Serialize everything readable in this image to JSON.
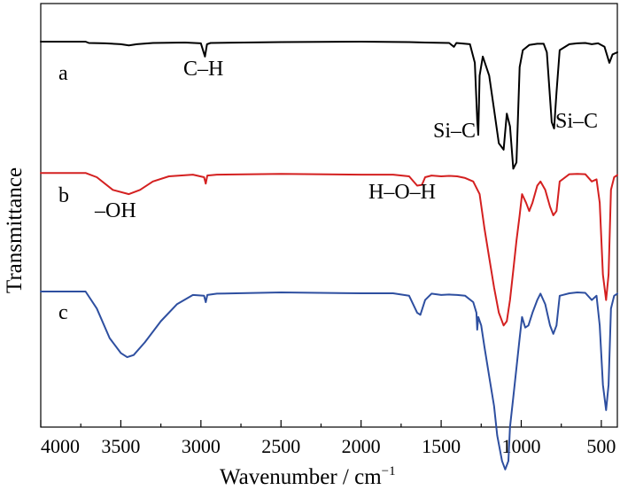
{
  "chart_data": {
    "type": "line",
    "title": "",
    "xlabel": "Wavenumber / cm",
    "xlabel_sup": "−1",
    "ylabel": "Transmittance",
    "xlim": [
      4000,
      400
    ],
    "x_reversed": true,
    "y_ticks_shown": false,
    "grid": false,
    "x_ticks": [
      4000,
      3500,
      3000,
      2500,
      2000,
      1500,
      1000,
      500
    ],
    "series": [
      {
        "name": "a",
        "color": "#000000",
        "offset": 0.91,
        "points": [
          [
            4000,
            0.0
          ],
          [
            3720,
            0.0
          ],
          [
            3700,
            -0.003
          ],
          [
            3600,
            -0.004
          ],
          [
            3500,
            -0.006
          ],
          [
            3450,
            -0.009
          ],
          [
            3400,
            -0.006
          ],
          [
            3300,
            -0.003
          ],
          [
            3100,
            -0.002
          ],
          [
            3000,
            -0.004
          ],
          [
            2975,
            -0.035
          ],
          [
            2962,
            -0.006
          ],
          [
            2940,
            -0.003
          ],
          [
            2500,
            -0.001
          ],
          [
            2000,
            0.0
          ],
          [
            1700,
            -0.001
          ],
          [
            1600,
            -0.002
          ],
          [
            1450,
            -0.003
          ],
          [
            1420,
            -0.012
          ],
          [
            1405,
            -0.003
          ],
          [
            1320,
            -0.006
          ],
          [
            1290,
            -0.05
          ],
          [
            1275,
            -0.185
          ],
          [
            1268,
            -0.22
          ],
          [
            1260,
            -0.08
          ],
          [
            1240,
            -0.035
          ],
          [
            1200,
            -0.08
          ],
          [
            1170,
            -0.16
          ],
          [
            1140,
            -0.24
          ],
          [
            1110,
            -0.255
          ],
          [
            1090,
            -0.17
          ],
          [
            1070,
            -0.2
          ],
          [
            1050,
            -0.3
          ],
          [
            1030,
            -0.285
          ],
          [
            1010,
            -0.06
          ],
          [
            990,
            -0.02
          ],
          [
            950,
            -0.008
          ],
          [
            900,
            -0.005
          ],
          [
            860,
            -0.005
          ],
          [
            840,
            -0.025
          ],
          [
            810,
            -0.19
          ],
          [
            795,
            -0.205
          ],
          [
            780,
            -0.12
          ],
          [
            760,
            -0.02
          ],
          [
            700,
            -0.006
          ],
          [
            650,
            -0.004
          ],
          [
            600,
            -0.003
          ],
          [
            560,
            -0.006
          ],
          [
            520,
            -0.004
          ],
          [
            480,
            -0.012
          ],
          [
            450,
            -0.05
          ],
          [
            430,
            -0.03
          ],
          [
            400,
            -0.025
          ]
        ]
      },
      {
        "name": "b",
        "color": "#d42020",
        "offset": 0.6,
        "points": [
          [
            4000,
            0.0
          ],
          [
            3720,
            0.0
          ],
          [
            3650,
            -0.01
          ],
          [
            3550,
            -0.04
          ],
          [
            3450,
            -0.05
          ],
          [
            3380,
            -0.04
          ],
          [
            3300,
            -0.02
          ],
          [
            3200,
            -0.008
          ],
          [
            3050,
            -0.004
          ],
          [
            2980,
            -0.01
          ],
          [
            2970,
            -0.025
          ],
          [
            2960,
            -0.006
          ],
          [
            2900,
            -0.004
          ],
          [
            2500,
            -0.002
          ],
          [
            2000,
            -0.004
          ],
          [
            1800,
            -0.004
          ],
          [
            1700,
            -0.008
          ],
          [
            1650,
            -0.03
          ],
          [
            1620,
            -0.028
          ],
          [
            1600,
            -0.01
          ],
          [
            1560,
            -0.006
          ],
          [
            1500,
            -0.008
          ],
          [
            1450,
            -0.007
          ],
          [
            1400,
            -0.008
          ],
          [
            1350,
            -0.012
          ],
          [
            1300,
            -0.02
          ],
          [
            1260,
            -0.05
          ],
          [
            1230,
            -0.13
          ],
          [
            1200,
            -0.2
          ],
          [
            1170,
            -0.27
          ],
          [
            1140,
            -0.33
          ],
          [
            1110,
            -0.36
          ],
          [
            1090,
            -0.35
          ],
          [
            1070,
            -0.3
          ],
          [
            1050,
            -0.23
          ],
          [
            1030,
            -0.16
          ],
          [
            1010,
            -0.1
          ],
          [
            995,
            -0.05
          ],
          [
            970,
            -0.07
          ],
          [
            950,
            -0.09
          ],
          [
            930,
            -0.07
          ],
          [
            900,
            -0.03
          ],
          [
            880,
            -0.02
          ],
          [
            850,
            -0.04
          ],
          [
            820,
            -0.08
          ],
          [
            800,
            -0.1
          ],
          [
            780,
            -0.09
          ],
          [
            760,
            -0.02
          ],
          [
            700,
            -0.003
          ],
          [
            650,
            -0.002
          ],
          [
            600,
            -0.003
          ],
          [
            560,
            -0.02
          ],
          [
            530,
            -0.015
          ],
          [
            510,
            -0.07
          ],
          [
            490,
            -0.24
          ],
          [
            470,
            -0.3
          ],
          [
            455,
            -0.24
          ],
          [
            440,
            -0.04
          ],
          [
            420,
            -0.01
          ],
          [
            400,
            -0.005
          ]
        ]
      },
      {
        "name": "c",
        "color": "#2e4fa0",
        "offset": 0.32,
        "points": [
          [
            4000,
            0.0
          ],
          [
            3720,
            0.0
          ],
          [
            3650,
            -0.04
          ],
          [
            3570,
            -0.11
          ],
          [
            3500,
            -0.145
          ],
          [
            3460,
            -0.155
          ],
          [
            3420,
            -0.15
          ],
          [
            3350,
            -0.12
          ],
          [
            3250,
            -0.07
          ],
          [
            3150,
            -0.03
          ],
          [
            3050,
            -0.008
          ],
          [
            2980,
            -0.01
          ],
          [
            2970,
            -0.025
          ],
          [
            2960,
            -0.008
          ],
          [
            2900,
            -0.005
          ],
          [
            2500,
            -0.002
          ],
          [
            2000,
            -0.004
          ],
          [
            1800,
            -0.004
          ],
          [
            1700,
            -0.01
          ],
          [
            1650,
            -0.05
          ],
          [
            1630,
            -0.055
          ],
          [
            1600,
            -0.02
          ],
          [
            1560,
            -0.005
          ],
          [
            1500,
            -0.008
          ],
          [
            1450,
            -0.007
          ],
          [
            1400,
            -0.008
          ],
          [
            1350,
            -0.01
          ],
          [
            1300,
            -0.025
          ],
          [
            1280,
            -0.05
          ],
          [
            1275,
            -0.09
          ],
          [
            1268,
            -0.06
          ],
          [
            1250,
            -0.08
          ],
          [
            1230,
            -0.13
          ],
          [
            1200,
            -0.2
          ],
          [
            1170,
            -0.27
          ],
          [
            1150,
            -0.34
          ],
          [
            1120,
            -0.4
          ],
          [
            1100,
            -0.42
          ],
          [
            1080,
            -0.4
          ],
          [
            1070,
            -0.32
          ],
          [
            1050,
            -0.25
          ],
          [
            1030,
            -0.18
          ],
          [
            1010,
            -0.11
          ],
          [
            995,
            -0.06
          ],
          [
            975,
            -0.085
          ],
          [
            955,
            -0.08
          ],
          [
            930,
            -0.05
          ],
          [
            900,
            -0.02
          ],
          [
            880,
            -0.005
          ],
          [
            850,
            -0.03
          ],
          [
            820,
            -0.08
          ],
          [
            800,
            -0.1
          ],
          [
            780,
            -0.08
          ],
          [
            760,
            -0.01
          ],
          [
            700,
            -0.004
          ],
          [
            650,
            -0.002
          ],
          [
            600,
            -0.003
          ],
          [
            560,
            -0.02
          ],
          [
            530,
            -0.01
          ],
          [
            510,
            -0.08
          ],
          [
            490,
            -0.22
          ],
          [
            470,
            -0.28
          ],
          [
            455,
            -0.22
          ],
          [
            440,
            -0.04
          ],
          [
            420,
            -0.01
          ],
          [
            400,
            -0.005
          ]
        ]
      }
    ],
    "annotations": {
      "trace_a_label": "a",
      "trace_b_label": "b",
      "trace_c_label": "c",
      "ch_label": "C–H",
      "sic_label_1": "Si–C",
      "sic_label_2": "Si–C",
      "oh_label": "–OH",
      "hoh_label": "H–O–H"
    }
  }
}
